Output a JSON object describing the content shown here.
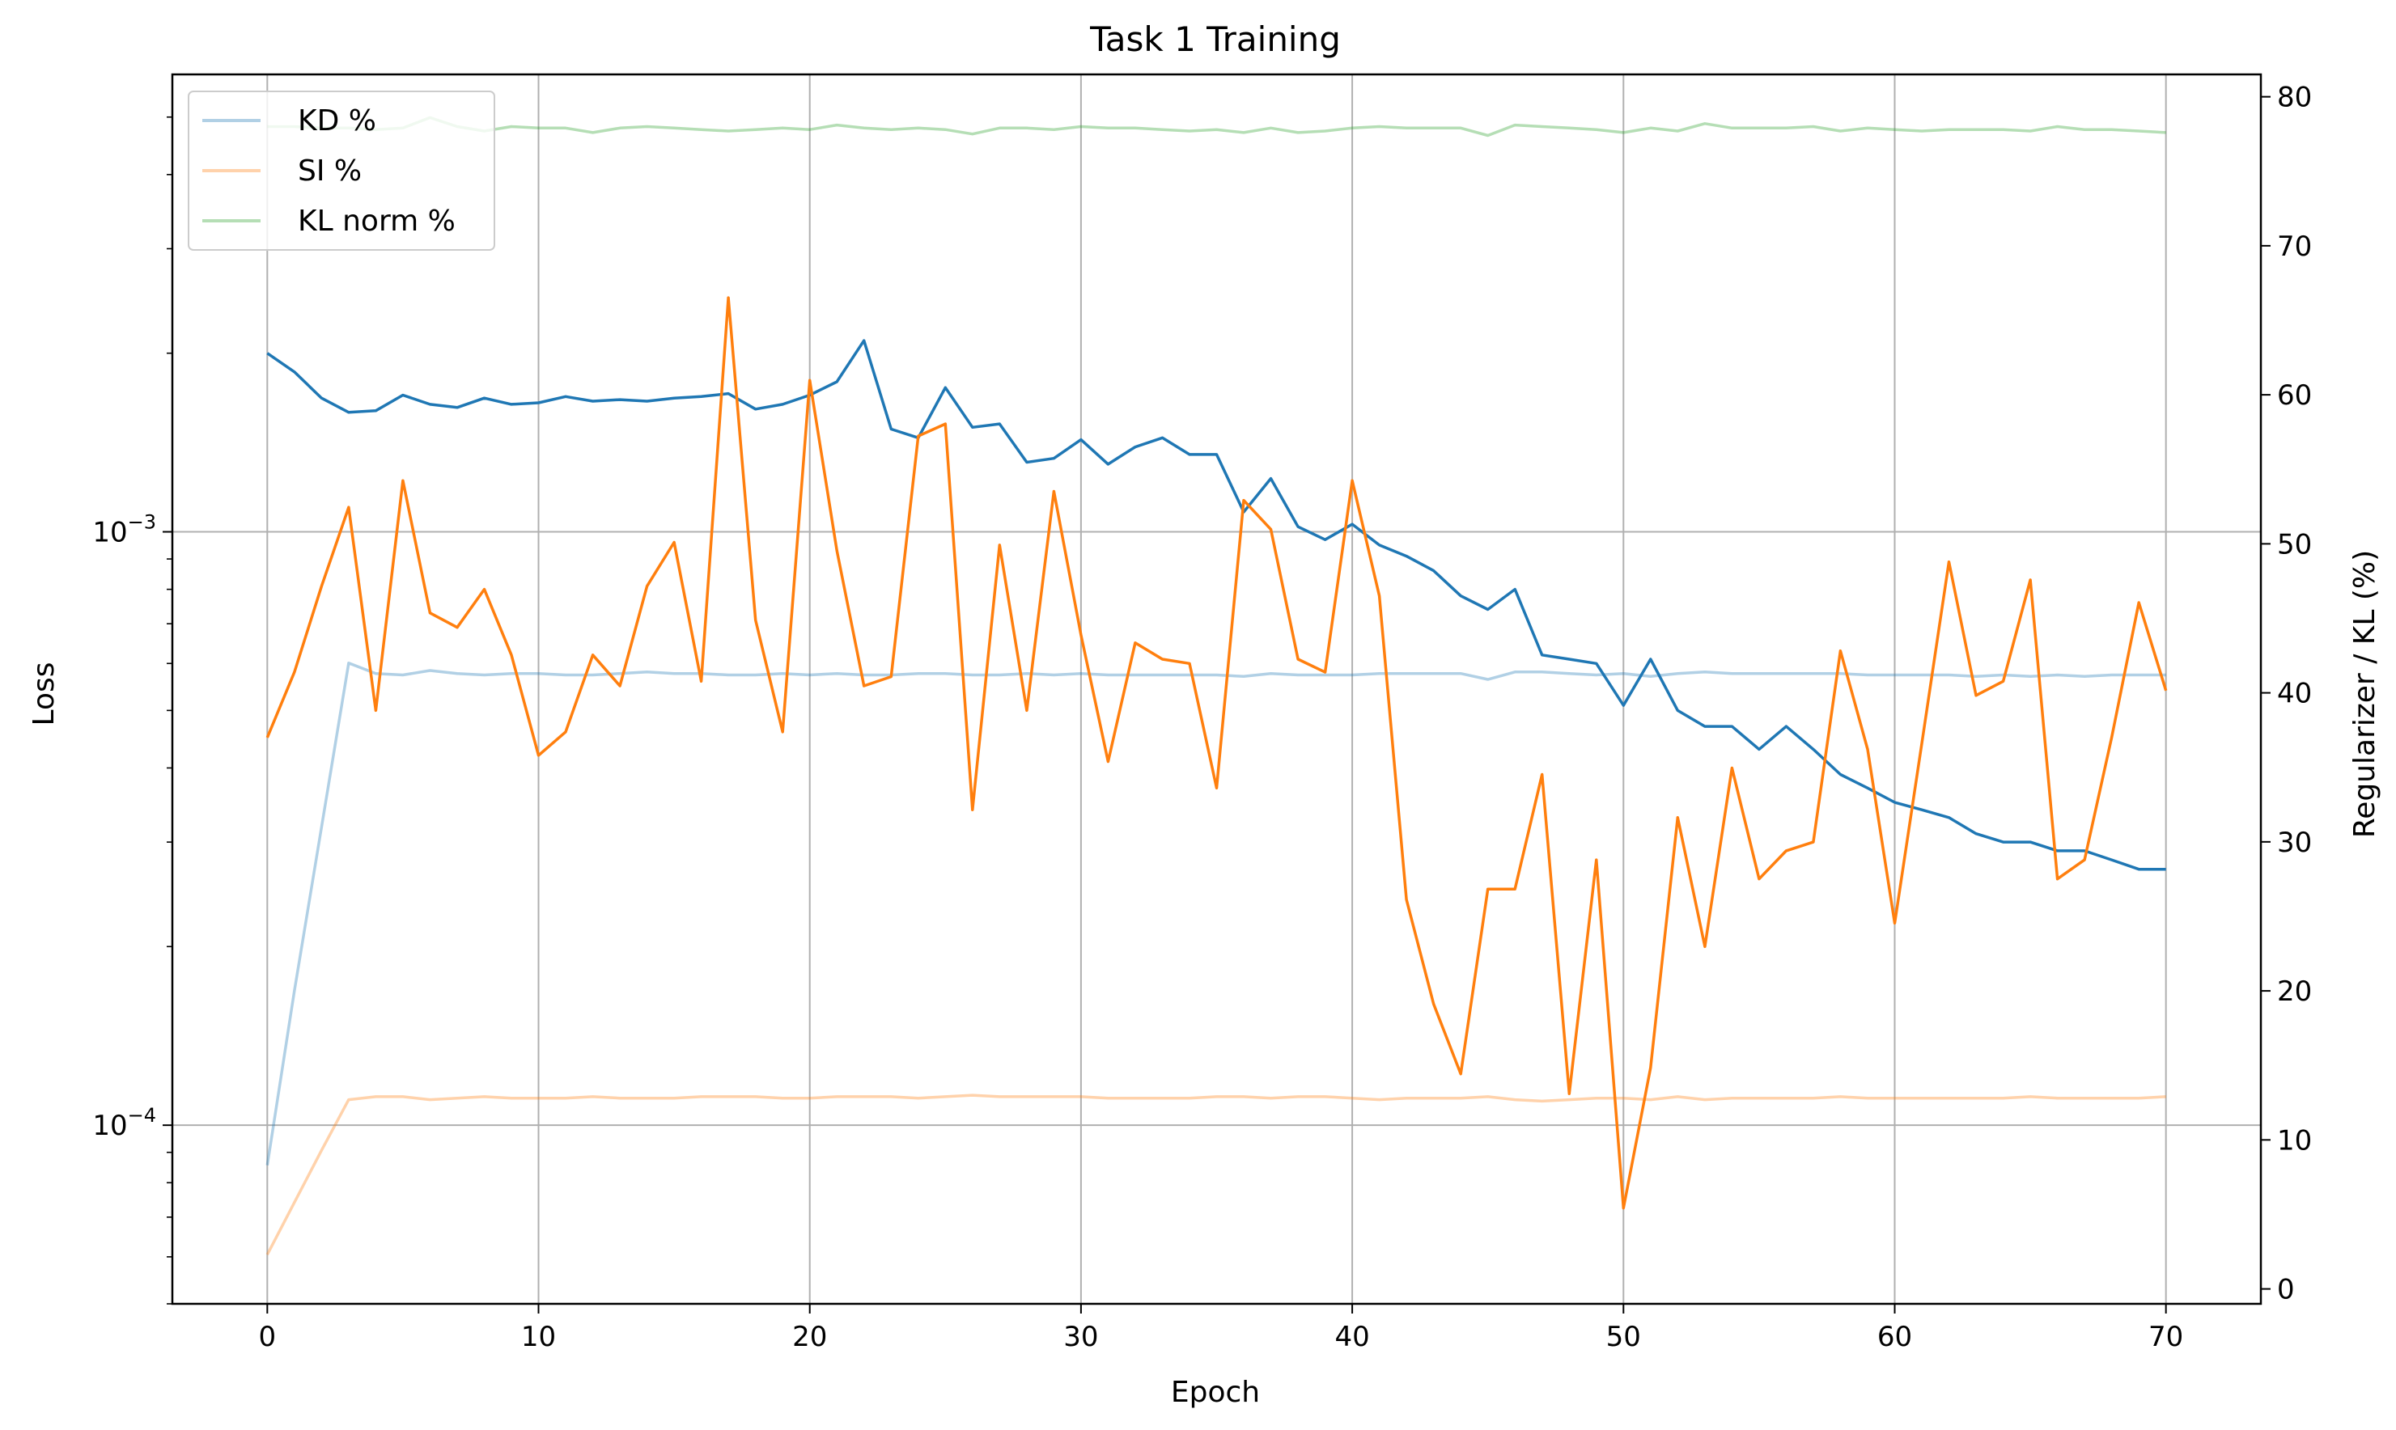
{
  "chart_data": {
    "type": "line",
    "title": "Task 1 Training",
    "xlabel": "Epoch",
    "ylabel_left": "Loss",
    "ylabel_right": "Regularizer / KL (%)",
    "y_left_scale": "log",
    "ylim_left": [
      5e-05,
      0.0059
    ],
    "ylim_right": [
      -1,
      81.5
    ],
    "xlim": [
      -3.5,
      73.5
    ],
    "x_ticks": [
      0,
      10,
      20,
      30,
      40,
      50,
      60,
      70
    ],
    "x_tick_labels": [
      "0",
      "10",
      "20",
      "30",
      "40",
      "50",
      "60",
      "70"
    ],
    "y_left_ticks": [
      0.0001,
      0.001
    ],
    "y_left_tick_labels": [
      {
        "base": "10",
        "exp": "−4"
      },
      {
        "base": "10",
        "exp": "−3"
      }
    ],
    "y_right_ticks": [
      0,
      10,
      20,
      30,
      40,
      50,
      60,
      70,
      80
    ],
    "y_right_tick_labels": [
      "0",
      "10",
      "20",
      "30",
      "40",
      "50",
      "60",
      "70",
      "80"
    ],
    "grid": true,
    "legend_placement": "top-left",
    "x": [
      0,
      1,
      2,
      3,
      4,
      5,
      6,
      7,
      8,
      9,
      10,
      11,
      12,
      13,
      14,
      15,
      16,
      17,
      18,
      19,
      20,
      21,
      22,
      23,
      24,
      25,
      26,
      27,
      28,
      29,
      30,
      31,
      32,
      33,
      34,
      35,
      36,
      37,
      38,
      39,
      40,
      41,
      42,
      43,
      44,
      45,
      46,
      47,
      48,
      49,
      50,
      51,
      52,
      53,
      54,
      55,
      56,
      57,
      58,
      59,
      60,
      61,
      62,
      63,
      64,
      65,
      66,
      67,
      68,
      69,
      70
    ],
    "series": [
      {
        "name": "KD %",
        "axis": "right",
        "color": "#1f77b4",
        "alpha": 0.35,
        "values": [
          8.3,
          20,
          31,
          42,
          41.3,
          41.2,
          41.5,
          41.3,
          41.2,
          41.3,
          41.3,
          41.2,
          41.2,
          41.3,
          41.4,
          41.3,
          41.3,
          41.2,
          41.2,
          41.3,
          41.2,
          41.3,
          41.2,
          41.2,
          41.3,
          41.3,
          41.2,
          41.2,
          41.3,
          41.2,
          41.3,
          41.2,
          41.2,
          41.2,
          41.2,
          41.2,
          41.1,
          41.3,
          41.2,
          41.2,
          41.2,
          41.3,
          41.3,
          41.3,
          41.3,
          40.9,
          41.4,
          41.4,
          41.3,
          41.2,
          41.3,
          41.1,
          41.3,
          41.4,
          41.3,
          41.3,
          41.3,
          41.3,
          41.3,
          41.2,
          41.2,
          41.2,
          41.2,
          41.1,
          41.2,
          41.1,
          41.2,
          41.1,
          41.2,
          41.2,
          41.2
        ]
      },
      {
        "name": "SI %",
        "axis": "right",
        "color": "#ff7f0e",
        "alpha": 0.35,
        "values": [
          2.3,
          5.8,
          9.3,
          12.7,
          12.9,
          12.9,
          12.7,
          12.8,
          12.9,
          12.8,
          12.8,
          12.8,
          12.9,
          12.8,
          12.8,
          12.8,
          12.9,
          12.9,
          12.9,
          12.8,
          12.8,
          12.9,
          12.9,
          12.9,
          12.8,
          12.9,
          13,
          12.9,
          12.9,
          12.9,
          12.9,
          12.8,
          12.8,
          12.8,
          12.8,
          12.9,
          12.9,
          12.8,
          12.9,
          12.9,
          12.8,
          12.7,
          12.8,
          12.8,
          12.8,
          12.9,
          12.7,
          12.6,
          12.7,
          12.8,
          12.8,
          12.7,
          12.9,
          12.7,
          12.8,
          12.8,
          12.8,
          12.8,
          12.9,
          12.8,
          12.8,
          12.8,
          12.8,
          12.8,
          12.8,
          12.9,
          12.8,
          12.8,
          12.8,
          12.8,
          12.9
        ]
      },
      {
        "name": "KL norm %",
        "axis": "right",
        "color": "#2ca02c",
        "alpha": 0.35,
        "values": [
          78,
          78,
          77.9,
          77.9,
          77.8,
          77.9,
          78.6,
          78,
          77.7,
          78,
          77.9,
          77.9,
          77.6,
          77.9,
          78,
          77.9,
          77.8,
          77.7,
          77.8,
          77.9,
          77.8,
          78.1,
          77.9,
          77.8,
          77.9,
          77.8,
          77.5,
          77.9,
          77.9,
          77.8,
          78,
          77.9,
          77.9,
          77.8,
          77.7,
          77.8,
          77.6,
          77.9,
          77.6,
          77.7,
          77.9,
          78,
          77.9,
          77.9,
          77.9,
          77.4,
          78.1,
          78,
          77.9,
          77.8,
          77.6,
          77.9,
          77.7,
          78.2,
          77.9,
          77.9,
          77.9,
          78,
          77.7,
          77.9,
          77.8,
          77.7,
          77.8,
          77.8,
          77.8,
          77.7,
          78,
          77.8,
          77.8,
          77.7,
          77.6
        ]
      },
      {
        "name": "",
        "axis": "left",
        "color": "#1f77b4",
        "alpha": 1,
        "values": [
          0.002,
          0.00186,
          0.00168,
          0.00159,
          0.0016,
          0.0017,
          0.00164,
          0.00162,
          0.00168,
          0.00164,
          0.00165,
          0.00169,
          0.00166,
          0.00167,
          0.00166,
          0.00168,
          0.00169,
          0.00171,
          0.00161,
          0.00164,
          0.0017,
          0.00179,
          0.0021,
          0.00149,
          0.00144,
          0.00175,
          0.0015,
          0.00152,
          0.00131,
          0.00133,
          0.00143,
          0.0013,
          0.00139,
          0.00144,
          0.00135,
          0.00135,
          0.00108,
          0.00123,
          0.00102,
          0.00097,
          0.00103,
          0.00095,
          0.00091,
          0.00086,
          0.00078,
          0.00074,
          0.0008,
          0.00062,
          0.00061,
          0.0006,
          0.00051,
          0.00061,
          0.0005,
          0.00047,
          0.00047,
          0.00043,
          0.00047,
          0.00043,
          0.00039,
          0.00037,
          0.00035,
          0.00034,
          0.00033,
          0.00031,
          0.0003,
          0.0003,
          0.00029,
          0.00029,
          0.00028,
          0.00027,
          0.00027
        ]
      },
      {
        "name": "",
        "axis": "left",
        "color": "#ff7f0e",
        "alpha": 1,
        "values": [
          0.00045,
          0.00058,
          0.00081,
          0.0011,
          0.0005,
          0.00122,
          0.00073,
          0.00069,
          0.0008,
          0.00062,
          0.00042,
          0.00046,
          0.00062,
          0.00055,
          0.00081,
          0.00096,
          0.00056,
          0.00248,
          0.00071,
          0.00046,
          0.0018,
          0.00093,
          0.00055,
          0.00057,
          0.00145,
          0.00152,
          0.00034,
          0.00095,
          0.0005,
          0.00117,
          0.00067,
          0.00041,
          0.00065,
          0.00061,
          0.0006,
          0.00037,
          0.00113,
          0.00101,
          0.00061,
          0.00058,
          0.00122,
          0.00078,
          0.00024,
          0.00016,
          0.000122,
          0.00025,
          0.00025,
          0.00039,
          0.000113,
          0.00028,
          7.25e-05,
          0.000125,
          0.00033,
          0.0002,
          0.0004,
          0.00026,
          0.00029,
          0.0003,
          0.00063,
          0.00043,
          0.000219,
          0.00044,
          0.00089,
          0.00053,
          0.00056,
          0.00083,
          0.00026,
          0.00028,
          0.00045,
          0.00076,
          0.00054
        ]
      }
    ]
  }
}
